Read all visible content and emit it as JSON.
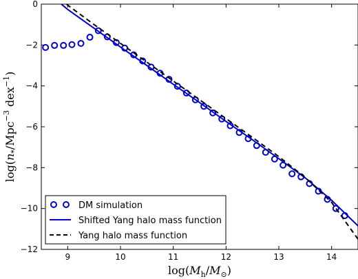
{
  "chart_data": {
    "type": "line",
    "xlabel": "log(M_h/M_⊙)",
    "ylabel": "log(n_*/Mpc^-3 dex^-1)",
    "xlim": [
      8.5,
      14.5
    ],
    "ylim": [
      -12,
      0
    ],
    "xticks": [
      9,
      10,
      11,
      12,
      13,
      14
    ],
    "yticks": [
      0,
      -2,
      -4,
      -6,
      -8,
      -10,
      -12
    ],
    "grid": false,
    "legend_position": "bottom-left",
    "series": [
      {
        "name": "DM simulation",
        "style": "circles",
        "color": "#0000cc",
        "x": [
          8.58,
          8.75,
          8.92,
          9.08,
          9.25,
          9.42,
          9.58,
          9.75,
          9.92,
          10.08,
          10.25,
          10.42,
          10.58,
          10.75,
          10.92,
          11.08,
          11.25,
          11.42,
          11.58,
          11.75,
          11.92,
          12.08,
          12.25,
          12.42,
          12.58,
          12.75,
          12.92,
          13.08,
          13.25,
          13.42,
          13.58,
          13.75,
          13.92,
          14.08,
          14.25
        ],
        "y": [
          -2.12,
          -2.02,
          -2.02,
          -1.98,
          -1.92,
          -1.62,
          -1.3,
          -1.6,
          -1.88,
          -2.15,
          -2.48,
          -2.78,
          -3.08,
          -3.38,
          -3.68,
          -4.02,
          -4.35,
          -4.68,
          -5.0,
          -5.32,
          -5.62,
          -5.95,
          -6.28,
          -6.58,
          -6.92,
          -7.25,
          -7.58,
          -7.88,
          -8.3,
          -8.45,
          -8.78,
          -9.15,
          -9.55,
          -10.0,
          -10.35
        ]
      },
      {
        "name": "Shifted Yang halo mass function",
        "style": "solid",
        "color": "#0000cc",
        "x": [
          8.88,
          9.0,
          9.5,
          10.0,
          10.5,
          11.0,
          11.5,
          12.0,
          12.5,
          13.0,
          13.5,
          14.0,
          14.5
        ],
        "y": [
          0.0,
          -0.26,
          -1.18,
          -2.1,
          -3.0,
          -3.92,
          -4.82,
          -5.74,
          -6.64,
          -7.56,
          -8.5,
          -9.6,
          -10.85
        ]
      },
      {
        "name": "Yang halo mass function",
        "style": "dashed",
        "color": "#000000",
        "x": [
          8.98,
          9.0,
          9.5,
          10.0,
          10.5,
          11.0,
          11.5,
          12.0,
          12.5,
          13.0,
          13.5,
          14.0,
          14.5
        ],
        "y": [
          0.0,
          -0.05,
          -1.0,
          -1.92,
          -2.84,
          -3.76,
          -4.68,
          -5.6,
          -6.52,
          -7.46,
          -8.48,
          -9.7,
          -11.5
        ]
      }
    ]
  }
}
